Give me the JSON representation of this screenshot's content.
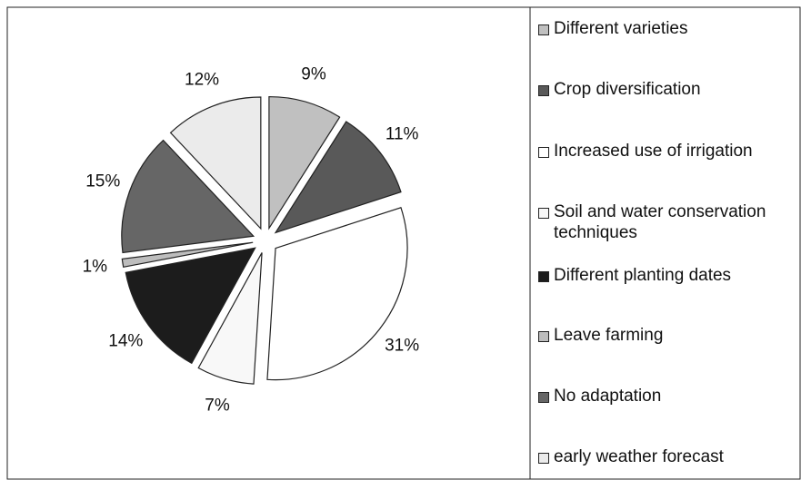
{
  "chart_data": {
    "type": "pie",
    "categories": [
      "Different varieties",
      "Crop diversification",
      "Increased use of irrigation",
      "Soil and water conservation techniques",
      "Different planting dates",
      "Leave farming",
      "No adaptation",
      "early weather forecast"
    ],
    "values": [
      9,
      11,
      31,
      7,
      14,
      1,
      15,
      12
    ],
    "value_labels": [
      "9%",
      "11%",
      "31%",
      "7%",
      "14%",
      "1%",
      "15%",
      "12%"
    ],
    "colors": [
      "#c0c0c0",
      "#595959",
      "#ffffff",
      "#f8f8f8",
      "#1c1c1c",
      "#bdbdbd",
      "#666666",
      "#ebebeb"
    ],
    "legend": "right"
  }
}
